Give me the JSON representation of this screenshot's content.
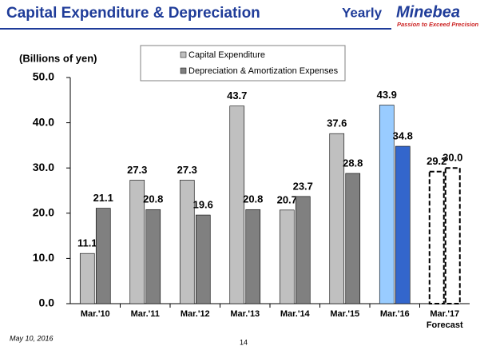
{
  "header": {
    "title": "Capital Expenditure & Depreciation",
    "period": "Yearly",
    "logo": "Minebea",
    "slogan": "Passion to Exceed Precision"
  },
  "footer": {
    "date": "May 10, 2016",
    "page": "14"
  },
  "chart_data": {
    "type": "bar",
    "y_label": "(Billions of yen)",
    "categories": [
      "Mar.'10",
      "Mar.'11",
      "Mar.'12",
      "Mar.'13",
      "Mar.'14",
      "Mar.'15",
      "Mar.'16",
      "Mar.'17"
    ],
    "forecast_label": "Forecast",
    "series": [
      {
        "name": "Capital Expenditure",
        "color": "#c0c0c0",
        "colors": [
          "#c0c0c0",
          "#c0c0c0",
          "#c0c0c0",
          "#c0c0c0",
          "#c0c0c0",
          "#c0c0c0",
          "#99ccff",
          "#ffffff"
        ],
        "values": [
          11.1,
          27.3,
          27.3,
          43.7,
          20.7,
          37.6,
          43.9,
          29.2
        ],
        "value_labels": [
          "11.1",
          "27.3",
          "27.3",
          "43.7",
          "20.7",
          "37.6",
          "43.9",
          "29.2"
        ]
      },
      {
        "name": "Depreciation & Amortization Expenses",
        "color": "#808080",
        "colors": [
          "#808080",
          "#808080",
          "#808080",
          "#808080",
          "#808080",
          "#808080",
          "#3366cc",
          "#ffffff"
        ],
        "values": [
          21.1,
          20.8,
          19.6,
          20.8,
          23.7,
          28.8,
          34.8,
          30.0
        ],
        "value_labels": [
          "21.1",
          "20.8",
          "19.6",
          "20.8",
          "23.7",
          "28.8",
          "34.8",
          "30.0"
        ]
      }
    ],
    "ylim": [
      0,
      50
    ],
    "yticks": [
      {
        "value": 0,
        "label": "0.0"
      },
      {
        "value": 10,
        "label": "10.0"
      },
      {
        "value": 20,
        "label": "20.0"
      },
      {
        "value": 30,
        "label": "30.0"
      },
      {
        "value": 40,
        "label": "40.0"
      },
      {
        "value": 50,
        "label": "50.0"
      }
    ],
    "grid": false
  }
}
